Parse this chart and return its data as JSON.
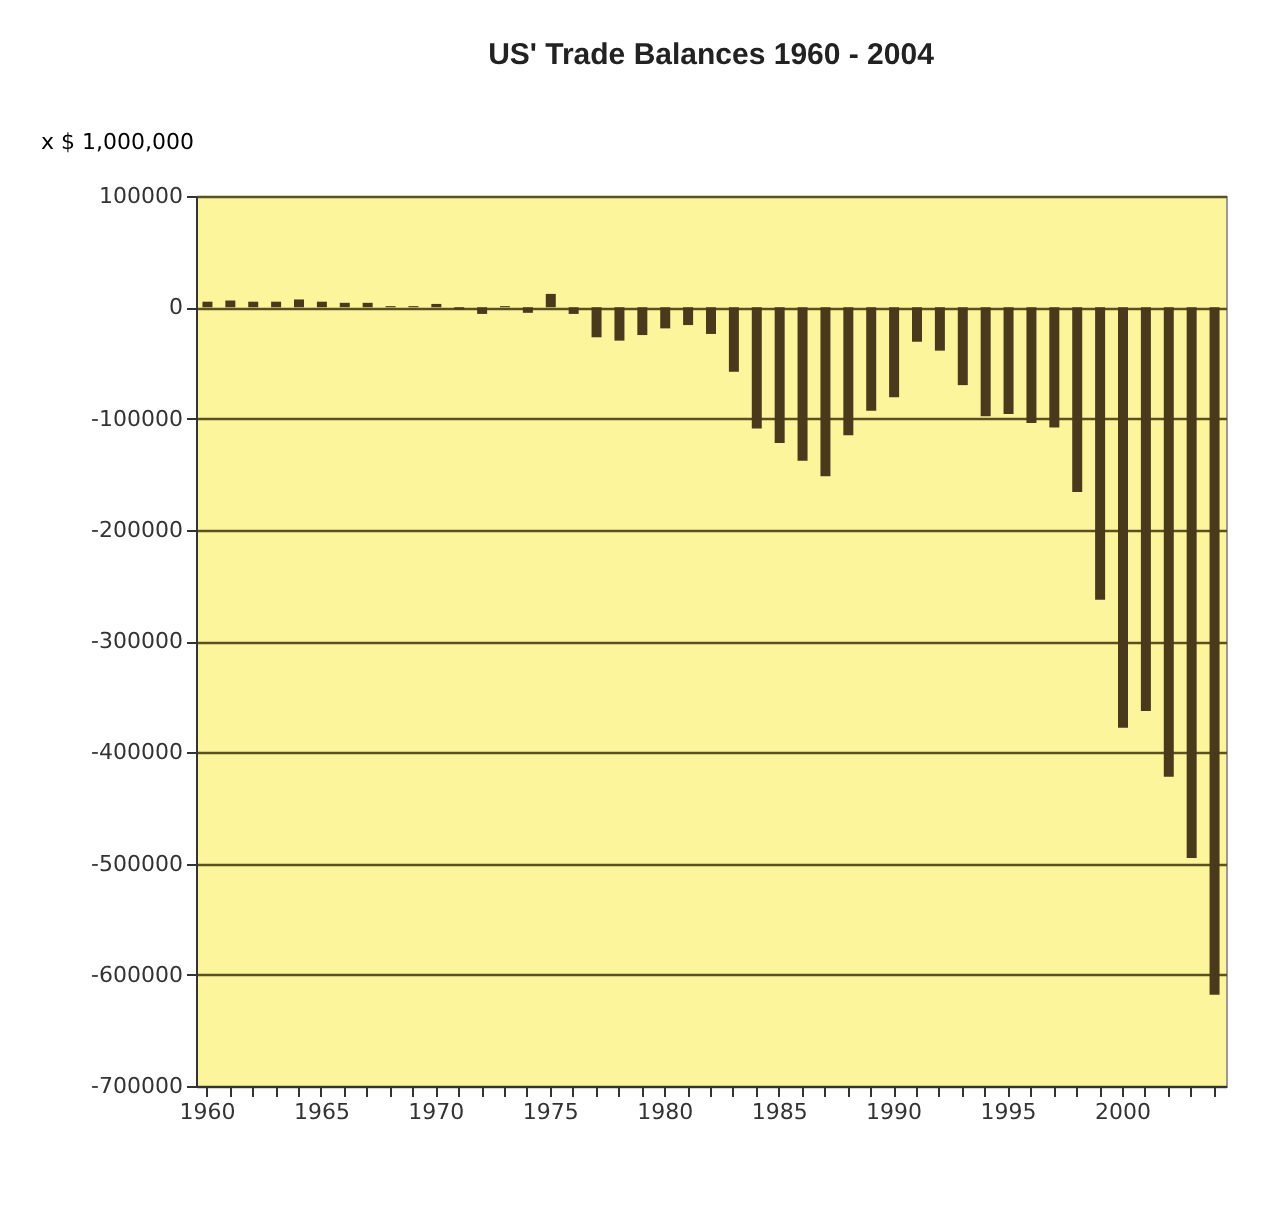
{
  "chart_data": {
    "type": "bar",
    "title": "US' Trade Balances 1960 - 2004",
    "ylabel": "x $ 1,000,000",
    "categories": [
      "1960",
      null,
      null,
      null,
      null,
      "1965",
      null,
      null,
      null,
      null,
      "1970",
      null,
      null,
      null,
      null,
      "1975",
      null,
      null,
      null,
      null,
      "1980",
      null,
      null,
      null,
      null,
      "1985",
      null,
      null,
      null,
      null,
      "1990",
      null,
      null,
      null,
      null,
      "1995",
      null,
      null,
      null,
      null,
      "2000",
      null,
      null,
      null,
      null
    ],
    "series": [
      {
        "color": "#4a3a1c",
        "values": [
          5000,
          6000,
          5000,
          5000,
          7000,
          5000,
          4000,
          4000,
          1000,
          1000,
          3000,
          -2000,
          -6000,
          1000,
          -5000,
          12000,
          -6000,
          -27000,
          -30000,
          -25000,
          -19000,
          -16000,
          -24000,
          -58000,
          -109000,
          -122000,
          -138000,
          -152000,
          -115000,
          -93000,
          -81000,
          -31000,
          -39000,
          -70000,
          -98000,
          -96000,
          -104000,
          -108000,
          -166000,
          -263000,
          -378000,
          -363000,
          -422000,
          -495000,
          -618000
        ]
      }
    ],
    "ylim": [
      -700000,
      100000
    ],
    "yticks": [
      -700000,
      -600000,
      -500000,
      -400000,
      -300000,
      -200000,
      -100000,
      0,
      100000
    ],
    "grid": "y"
  }
}
